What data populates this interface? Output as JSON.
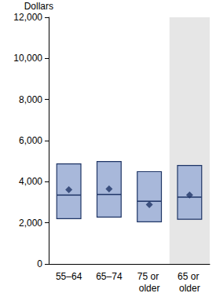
{
  "chart_data": {
    "type": "box",
    "y_label": "Dollars",
    "categories": [
      "55–64",
      "65–74",
      "75 or older",
      "65 or older"
    ],
    "p25": [
      2200,
      2280,
      2050,
      2170
    ],
    "median": [
      3350,
      3380,
      3050,
      3250
    ],
    "p75": [
      4870,
      4980,
      4490,
      4790
    ],
    "mean": [
      3610,
      3650,
      2890,
      3350
    ],
    "marker": "diamond",
    "color": "#1f3566",
    "ylim": [
      0,
      12000
    ],
    "yticks": [
      0,
      {
        "value": 2000,
        "label": "2,000"
      },
      {
        "value": 4000,
        "label": "4,000"
      },
      {
        "value": 6000,
        "label": "6,000"
      },
      {
        "value": 8000,
        "label": "8,000"
      },
      {
        "value": 10000,
        "label": "10,000"
      },
      {
        "value": 12000,
        "label": "12,000"
      }
    ],
    "grid": false
  }
}
